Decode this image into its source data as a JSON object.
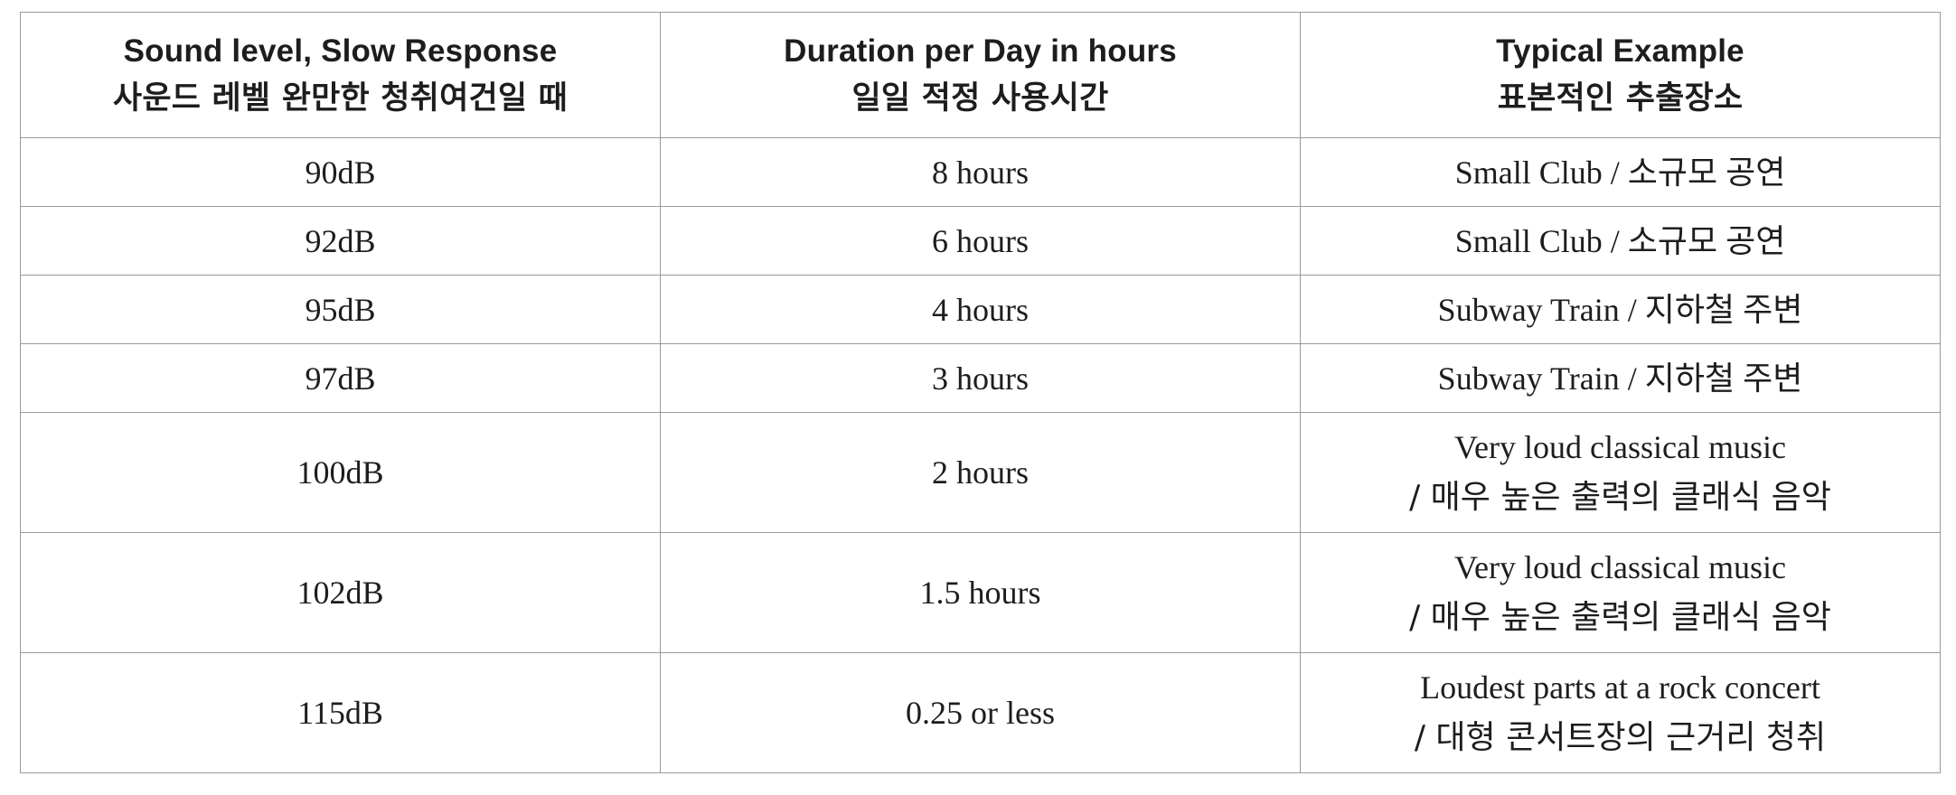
{
  "table": {
    "headers": [
      {
        "en": "Sound level, Slow Response",
        "ko": "사운드 레벨  완만한 청취여건일 때"
      },
      {
        "en": "Duration per Day in hours",
        "ko": "일일 적정 사용시간"
      },
      {
        "en": "Typical Example",
        "ko": "표본적인 추출장소"
      }
    ],
    "rows": [
      {
        "level": "90dB",
        "duration": "8 hours",
        "example_line1": "Small Club / 소규모 공연",
        "example_line2": ""
      },
      {
        "level": "92dB",
        "duration": "6 hours",
        "example_line1": "Small Club / 소규모 공연",
        "example_line2": ""
      },
      {
        "level": "95dB",
        "duration": "4 hours",
        "example_line1": "Subway Train / 지하철 주변",
        "example_line2": ""
      },
      {
        "level": "97dB",
        "duration": "3 hours",
        "example_line1": "Subway Train / 지하철 주변",
        "example_line2": ""
      },
      {
        "level": "100dB",
        "duration": "2 hours",
        "example_line1": "Very loud classical music",
        "example_line2": "/ 매우 높은 출력의 클래식 음악"
      },
      {
        "level": "102dB",
        "duration": "1.5 hours",
        "example_line1": "Very loud classical music",
        "example_line2": "/ 매우 높은 출력의 클래식 음악"
      },
      {
        "level": "115dB",
        "duration": "0.25 or less",
        "example_line1": "Loudest parts at a rock concert",
        "example_line2": "/ 대형 콘서트장의 근거리 청취"
      }
    ]
  }
}
